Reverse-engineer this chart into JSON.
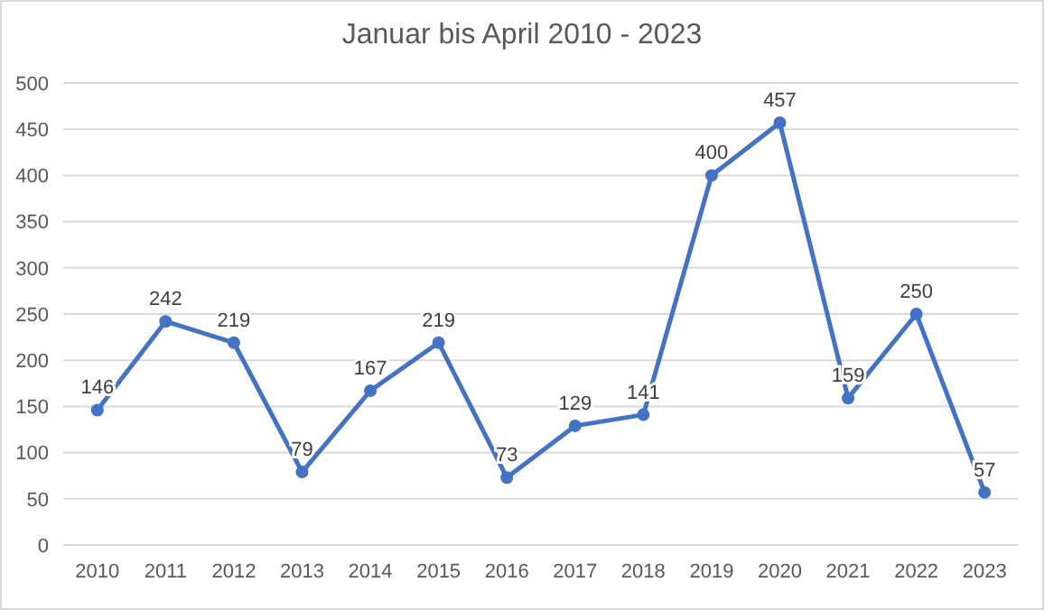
{
  "chart_data": {
    "type": "line",
    "title": "Januar bis April 2010 - 2023",
    "categories": [
      "2010",
      "2011",
      "2012",
      "2013",
      "2014",
      "2015",
      "2016",
      "2017",
      "2018",
      "2019",
      "2020",
      "2021",
      "2022",
      "2023"
    ],
    "series": [
      {
        "color": "#4472c4",
        "values": [
          146,
          242,
          219,
          79,
          167,
          219,
          73,
          129,
          141,
          400,
          457,
          159,
          250,
          57
        ]
      }
    ],
    "ylim": [
      0,
      500
    ],
    "yticks": [
      0,
      50,
      100,
      150,
      200,
      250,
      300,
      350,
      400,
      450,
      500
    ],
    "grid": "y",
    "marker": "circle",
    "line_style": "solid",
    "data_labels": true
  }
}
